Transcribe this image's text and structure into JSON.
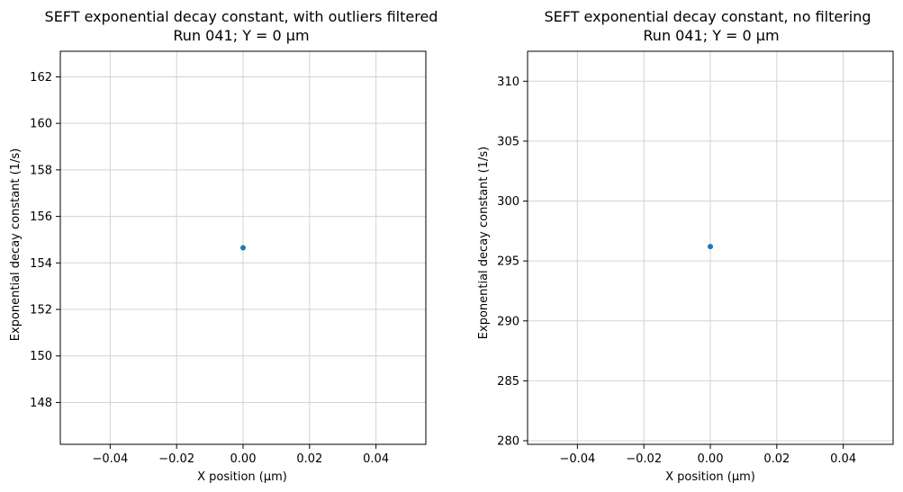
{
  "chart_data": [
    {
      "type": "scatter",
      "title": "SEFT exponential decay constant, with outliers filtered",
      "subtitle": "Run 041; Y = 0 µm",
      "xlabel": "X position (µm)",
      "ylabel": "Exponential decay constant (1/s)",
      "xlim": [
        -0.055,
        0.055
      ],
      "ylim": [
        146.2,
        163.1
      ],
      "xticks": [
        -0.04,
        -0.02,
        0.0,
        0.02,
        0.04
      ],
      "xtick_labels": [
        "−0.04",
        "−0.02",
        "0.00",
        "0.02",
        "0.04"
      ],
      "yticks": [
        148,
        150,
        152,
        154,
        156,
        158,
        160,
        162
      ],
      "ytick_labels": [
        "148",
        "150",
        "152",
        "154",
        "156",
        "158",
        "160",
        "162"
      ],
      "grid": true,
      "series": [
        {
          "x": [
            0.0
          ],
          "y": [
            154.65
          ],
          "color": "#1f77b4"
        }
      ]
    },
    {
      "type": "scatter",
      "title": "SEFT exponential decay constant, no filtering",
      "subtitle": "Run 041; Y = 0 µm",
      "xlabel": "X position (µm)",
      "ylabel": "Exponential decay constant (1/s)",
      "xlim": [
        -0.055,
        0.055
      ],
      "ylim": [
        279.7,
        312.5
      ],
      "xticks": [
        -0.04,
        -0.02,
        0.0,
        0.02,
        0.04
      ],
      "xtick_labels": [
        "−0.04",
        "−0.02",
        "0.00",
        "0.02",
        "0.04"
      ],
      "yticks": [
        280,
        285,
        290,
        295,
        300,
        305,
        310
      ],
      "ytick_labels": [
        "280",
        "285",
        "290",
        "295",
        "300",
        "305",
        "310"
      ],
      "grid": true,
      "series": [
        {
          "x": [
            0.0
          ],
          "y": [
            296.2
          ],
          "color": "#1f77b4"
        }
      ]
    }
  ]
}
